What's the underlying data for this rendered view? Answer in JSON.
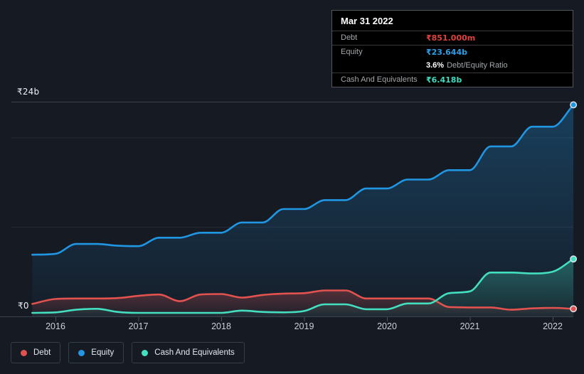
{
  "tooltip": {
    "date": "Mar 31 2022",
    "rows": [
      {
        "label": "Debt",
        "value": "₹851.000m",
        "color": "#e0423c"
      },
      {
        "label": "Equity",
        "value": "₹23.644b",
        "color": "#2ba0e8"
      },
      {
        "label": "Cash And Equivalents",
        "value": "₹6.418b",
        "color": "#3edcc0"
      }
    ],
    "ratio_value": "3.6%",
    "ratio_label": "Debt/Equity Ratio"
  },
  "axis": {
    "y_top_label": "₹24b",
    "y_zero_label": "₹0",
    "years": [
      "2016",
      "2017",
      "2018",
      "2019",
      "2020",
      "2021",
      "2022"
    ]
  },
  "legend": {
    "items": [
      {
        "label": "Debt",
        "color": "#e2524e"
      },
      {
        "label": "Equity",
        "color": "#2196e3"
      },
      {
        "label": "Cash And Equivalents",
        "color": "#43dfc0"
      }
    ]
  },
  "colors": {
    "background": "#151a23",
    "grid_strong": "#3b434e",
    "grid_faint": "#242c37",
    "tick": "#454d57",
    "year_label": "#c9d0d8",
    "y_label": "#edf0f3",
    "dot_stroke": "#dce4ea"
  },
  "chart_data": {
    "type": "area",
    "x_unit": "decimal_year",
    "ylim": [
      0,
      24
    ],
    "y_unit": "₹ billions",
    "gridlines": [
      24,
      20,
      10,
      0
    ],
    "legend_position": "bottom-left",
    "x": [
      2015.72,
      2016.0,
      2016.25,
      2016.5,
      2016.75,
      2017.0,
      2017.25,
      2017.5,
      2017.75,
      2018.0,
      2018.25,
      2018.5,
      2018.75,
      2019.0,
      2019.25,
      2019.5,
      2019.75,
      2020.0,
      2020.25,
      2020.5,
      2020.75,
      2021.0,
      2021.25,
      2021.5,
      2021.75,
      2022.0,
      2022.25
    ],
    "series": [
      {
        "name": "Debt",
        "color": "#e2524e",
        "values": [
          1.4,
          1.95,
          2.0,
          2.0,
          2.05,
          2.3,
          2.45,
          1.7,
          2.45,
          2.5,
          2.1,
          2.4,
          2.55,
          2.6,
          2.9,
          2.9,
          2.0,
          2.0,
          2.0,
          2.0,
          1.05,
          1.0,
          1.0,
          0.75,
          0.9,
          0.95,
          0.851
        ]
      },
      {
        "name": "Equity",
        "color": "#2196e3",
        "values": [
          6.9,
          7.0,
          8.1,
          8.1,
          7.9,
          7.85,
          8.8,
          8.8,
          9.35,
          9.35,
          10.5,
          10.5,
          12.0,
          12.0,
          13.0,
          13.0,
          14.3,
          14.3,
          15.3,
          15.3,
          16.35,
          16.35,
          19.0,
          19.0,
          21.2,
          21.2,
          23.644
        ]
      },
      {
        "name": "Cash And Equivalents",
        "color": "#43dfc0",
        "values": [
          0.4,
          0.45,
          0.75,
          0.85,
          0.5,
          0.4,
          0.4,
          0.4,
          0.4,
          0.4,
          0.65,
          0.5,
          0.45,
          0.6,
          1.35,
          1.35,
          0.8,
          0.8,
          1.45,
          1.45,
          2.6,
          2.8,
          4.9,
          4.9,
          4.8,
          5.0,
          6.418
        ]
      }
    ],
    "end_values": {
      "Debt": "₹851.000m",
      "Equity": "₹23.644b",
      "Cash And Equivalents": "₹6.418b"
    }
  }
}
